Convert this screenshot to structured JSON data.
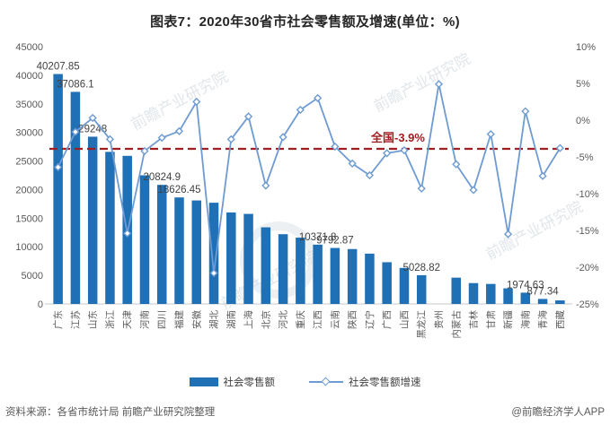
{
  "title": "图表7：2020年30省市社会零售额及增速(单位：%)",
  "chart_data": {
    "type": "bar",
    "categories": [
      "广东",
      "江苏",
      "山东",
      "浙江",
      "天津",
      "河南",
      "四川",
      "福建",
      "安徽",
      "湖北",
      "湖南",
      "上海",
      "北京",
      "河北",
      "重庆",
      "江西",
      "云南",
      "陕西",
      "辽宁",
      "广西",
      "山西",
      "黑龙江",
      "贵州",
      "内蒙古",
      "吉林",
      "甘肃",
      "新疆",
      "海南",
      "青海",
      "西藏"
    ],
    "series": [
      {
        "name": "社会零售额",
        "kind": "bar",
        "axis": "left",
        "values": [
          40207.85,
          37086.1,
          29248,
          26600,
          25900,
          22500,
          20824.9,
          18626.45,
          18100,
          17700,
          16000,
          15750,
          13400,
          12200,
          11600,
          10371.8,
          9792.87,
          9600,
          8800,
          7300,
          6300,
          5028.82,
          null,
          4600,
          3650,
          3500,
          2730,
          1974.63,
          877.34,
          620
        ]
      },
      {
        "name": "社会零售额增速",
        "kind": "line",
        "axis": "right",
        "values": [
          -6.4,
          -1.6,
          0.3,
          -2.6,
          -15.4,
          -4.2,
          -2.4,
          -1.5,
          2.5,
          -20.8,
          -2.6,
          0.5,
          -8.9,
          -2.3,
          1.4,
          3.0,
          -3.6,
          -5.9,
          -7.5,
          -4.5,
          -4.1,
          -9.3,
          4.9,
          -6.0,
          -9.5,
          -1.9,
          -15.5,
          1.2,
          -7.6,
          -3.8
        ]
      }
    ],
    "labeled_points": [
      {
        "index": 0,
        "label": "40207.85"
      },
      {
        "index": 1,
        "label": "37086.1"
      },
      {
        "index": 2,
        "label": "29248"
      },
      {
        "index": 6,
        "label": "20824.9"
      },
      {
        "index": 7,
        "label": "18626.45"
      },
      {
        "index": 15,
        "label": "10371.8"
      },
      {
        "index": 16,
        "label": "9792.87"
      },
      {
        "index": 21,
        "label": "5028.82"
      },
      {
        "index": 27,
        "label": "1974.63"
      },
      {
        "index": 28,
        "label": "877.34"
      }
    ],
    "left_axis": {
      "min": 0,
      "max": 45000,
      "step": 5000,
      "ticks": [
        "45000",
        "40000",
        "35000",
        "30000",
        "25000",
        "20000",
        "15000",
        "10000",
        "5000",
        "0"
      ]
    },
    "right_axis": {
      "min": -25,
      "max": 10,
      "step": 5,
      "ticks": [
        "10%",
        "5%",
        "0%",
        "-5%",
        "-10%",
        "-15%",
        "-20%",
        "-25%"
      ]
    },
    "reference_line": {
      "value": -3.9,
      "label": "全国-3.9%"
    },
    "legend": [
      "社会零售额",
      "社会零售额增速"
    ],
    "colors": {
      "bar": "#1f70b5",
      "line": "#6e9bd1",
      "reference": "#a21c21",
      "axis_text": "#595959",
      "data_label": "#3f3f3f"
    }
  },
  "watermark": "前瞻产业研究院",
  "footer": {
    "source": "资料来源：各省市统计局 前瞻产业研究院整理",
    "credit": "@前瞻经济学人APP"
  }
}
